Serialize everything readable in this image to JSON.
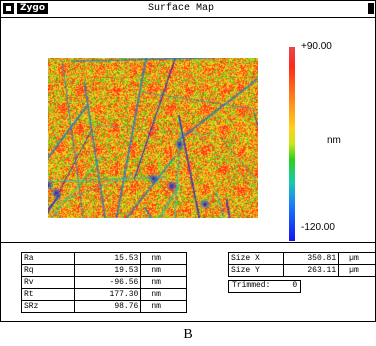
{
  "window": {
    "logo": "Zygo",
    "title": "Surface Map"
  },
  "colorbar": {
    "max_label": "+90.00",
    "unit": "nm",
    "min_label": "-120.00",
    "max": 90.0,
    "min": -120.0
  },
  "stats": [
    {
      "label": "Ra",
      "value": "15.53",
      "unit": "nm"
    },
    {
      "label": "Rq",
      "value": "19.53",
      "unit": "nm"
    },
    {
      "label": "Rv",
      "value": "-96.56",
      "unit": "nm"
    },
    {
      "label": "Rt",
      "value": "177.30",
      "unit": "nm"
    },
    {
      "label": "SRz",
      "value": "98.76",
      "unit": "nm"
    }
  ],
  "size": {
    "x": {
      "label": "Size X",
      "value": "350.81",
      "unit": "µm"
    },
    "y": {
      "label": "Size Y",
      "value": "263.11",
      "unit": "µm"
    }
  },
  "trimmed": {
    "label": "Trimmed:",
    "value": "0"
  },
  "caption": "B"
}
